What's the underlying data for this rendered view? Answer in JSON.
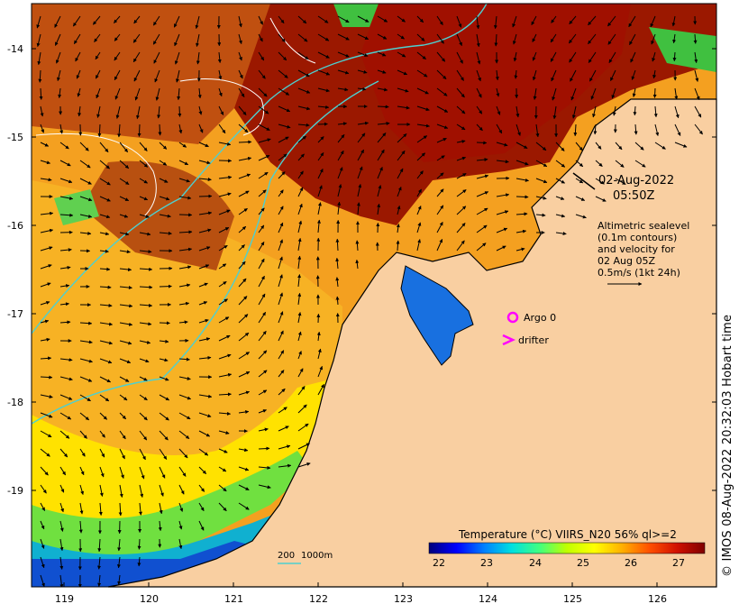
{
  "map": {
    "lat_labels": [
      "-14",
      "-15",
      "-16",
      "-17",
      "-18",
      "-19"
    ],
    "lon_labels": [
      "119",
      "120",
      "121",
      "122",
      "123",
      "124",
      "125",
      "126"
    ],
    "land_color": "#f9cfa1",
    "coastline_color": "#000000",
    "depth_contour_color": "#4dd0d0",
    "sealevel_contour_color": "#ffffff"
  },
  "annotation": {
    "date": "02-Aug-2022",
    "time": "05:50Z",
    "info_lines": [
      "Altimetric sealevel",
      "(0.1m contours)",
      "and velocity for",
      "02 Aug 05Z",
      "0.5m/s (1kt 24h)"
    ]
  },
  "legend": {
    "argo_label": "Argo 0",
    "drifter_label": "drifter",
    "marker_color": "#ff00ff"
  },
  "bathymetry_key": {
    "label_a": "200",
    "label_b": "1000m"
  },
  "colorbar": {
    "title": "Temperature (°C) VIIRS_N20 56% ql>=2",
    "ticks": [
      "22",
      "23",
      "24",
      "25",
      "26",
      "27"
    ],
    "min": 21.7,
    "max": 27.5,
    "colormap": [
      "#00007a",
      "#0000ff",
      "#0080ff",
      "#00e0e0",
      "#40ff80",
      "#c0ff00",
      "#ffff00",
      "#ffb000",
      "#ff5000",
      "#d01000",
      "#800000"
    ]
  },
  "credit": "© IMOS 08-Aug-2022 20:32:03 Hobart time"
}
